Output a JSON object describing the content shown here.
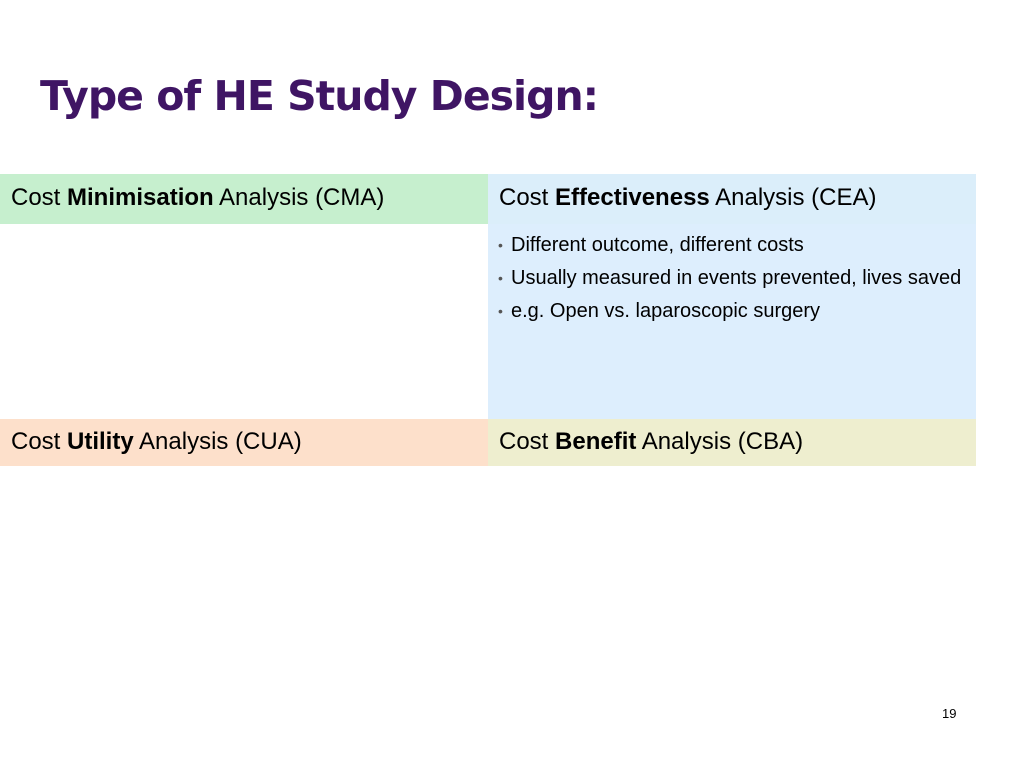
{
  "slide": {
    "title": "Type of HE Study Design:",
    "page_number": "19"
  },
  "cells": {
    "cma": {
      "pre": "Cost ",
      "bold": "Minimisation",
      "post": " Analysis (CMA)"
    },
    "cea": {
      "pre": "Cost ",
      "bold": "Effectiveness",
      "post": " Analysis (CEA)",
      "bullets": [
        "Different outcome, different costs",
        "Usually measured in events prevented, lives saved",
        "e.g. Open vs. laparoscopic surgery"
      ]
    },
    "cua": {
      "pre": "Cost ",
      "bold": "Utility",
      "post": " Analysis (CUA)"
    },
    "cba": {
      "pre": "Cost ",
      "bold": "Benefit",
      "post": " Analysis (CBA)"
    }
  },
  "colors": {
    "title": "#3f1564",
    "cma_bg": "#c6efce",
    "cea_bg": "#dbeefa",
    "cua_bg": "#fde0cb",
    "cba_bg": "#eeeecf"
  }
}
